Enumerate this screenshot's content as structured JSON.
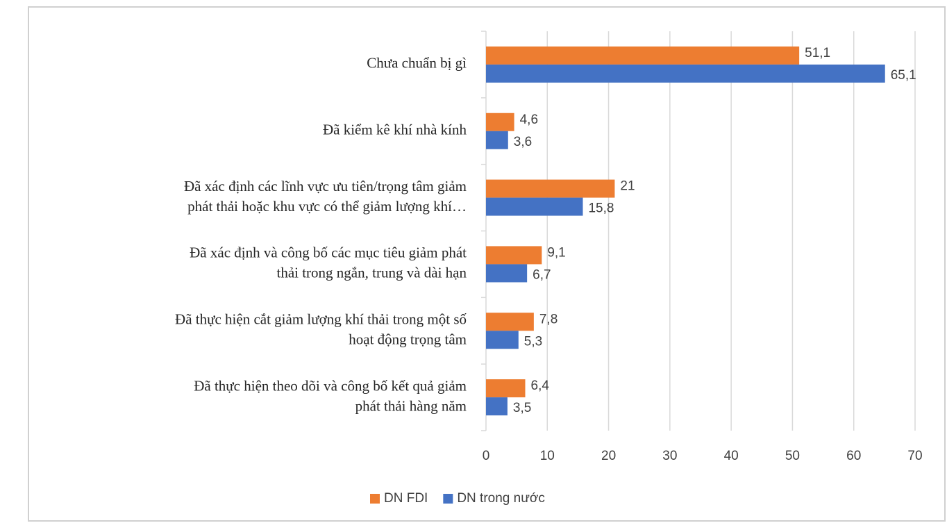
{
  "chart_data": {
    "type": "bar",
    "orientation": "horizontal",
    "categories": [
      [
        "Chưa chuẩn bị gì"
      ],
      [
        "Đã kiểm kê khí nhà kính"
      ],
      [
        "Đã xác định các lĩnh vực ưu tiên/trọng tâm giảm",
        "phát thải hoặc khu vực có thể giảm lượng khí…"
      ],
      [
        "Đã xác định và công bố các mục tiêu giảm phát",
        "thải trong ngắn, trung và dài hạn"
      ],
      [
        "Đã thực hiện cắt giảm lượng khí thải trong một số",
        "hoạt động trọng tâm"
      ],
      [
        "Đã thực hiện theo dõi và công bố kết quả giảm",
        "phát thải hàng năm"
      ]
    ],
    "series": [
      {
        "name": "DN FDI",
        "color": "#ed7d31",
        "values": [
          51.1,
          4.6,
          21,
          9.1,
          7.8,
          6.4
        ],
        "value_labels": [
          "51,1",
          "4,6",
          "21",
          "9,1",
          "7,8",
          "6,4"
        ]
      },
      {
        "name": "DN trong nước",
        "color": "#4472c4",
        "values": [
          65.1,
          3.6,
          15.8,
          6.7,
          5.3,
          3.5
        ],
        "value_labels": [
          "65,1",
          "3,6",
          "15,8",
          "6,7",
          "5,3",
          "3,5"
        ]
      }
    ],
    "xlim": [
      0,
      70
    ],
    "xticks": [
      0,
      10,
      20,
      30,
      40,
      50,
      60,
      70
    ],
    "grid": true,
    "legend": "bottom"
  }
}
